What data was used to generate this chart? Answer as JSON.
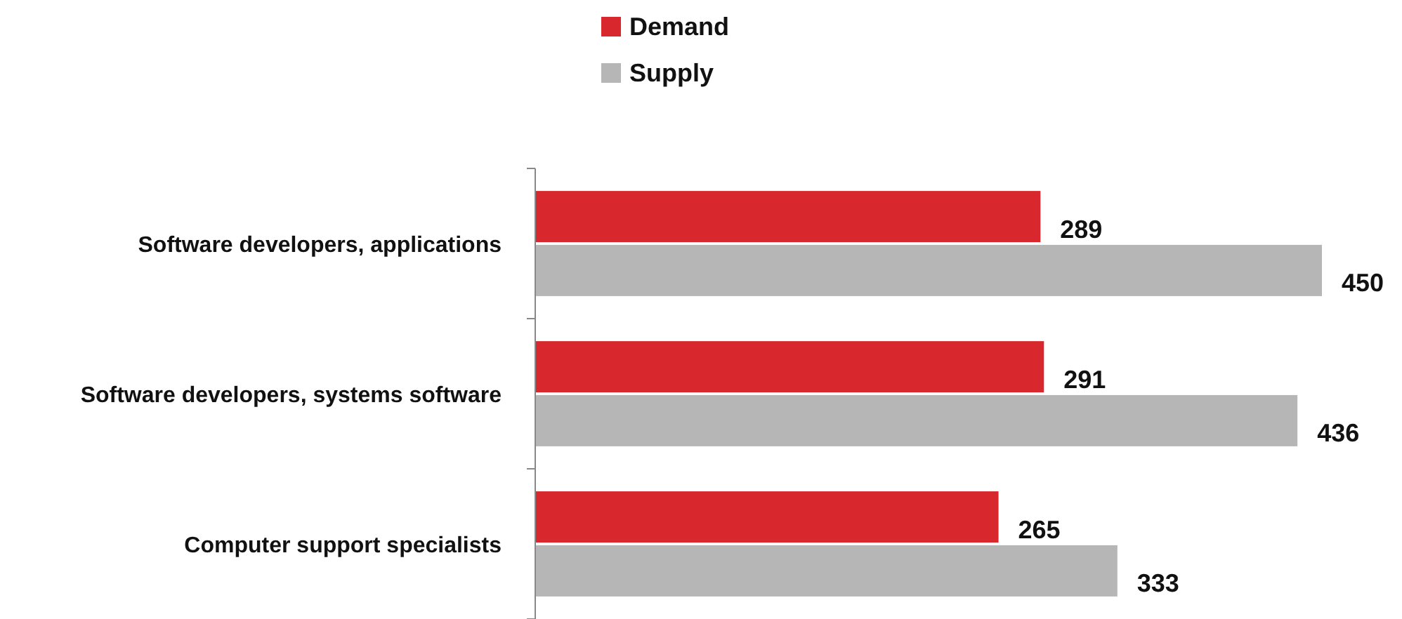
{
  "chart_data": {
    "type": "bar",
    "orientation": "horizontal",
    "categories": [
      "Software developers, applications",
      "Software developers, systems software",
      "Computer support specialists"
    ],
    "series": [
      {
        "name": "Demand",
        "color": "#d9282d",
        "values": [
          289,
          291,
          265
        ]
      },
      {
        "name": "Supply",
        "color": "#b6b6b6",
        "values": [
          450,
          436,
          333
        ]
      }
    ],
    "data_labels": true,
    "legend": "top"
  }
}
